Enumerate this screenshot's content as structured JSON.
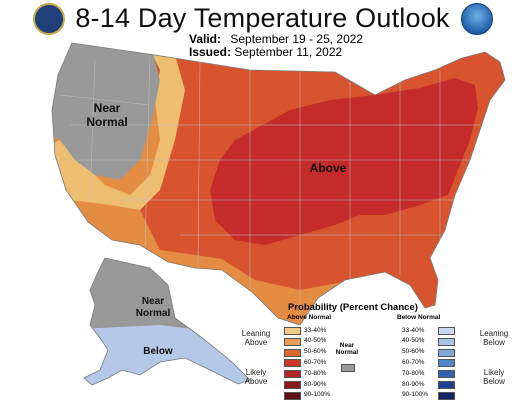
{
  "header": {
    "title": "8-14 Day Temperature Outlook",
    "valid_label": "Valid:",
    "valid_value": "September 19 - 25, 2022",
    "issued_label": "Issued:",
    "issued_value": "September 11, 2022"
  },
  "logos": {
    "left": "commerce-seal",
    "right": "noaa"
  },
  "map": {
    "region_labels": {
      "near_normal_west": "Near\nNormal",
      "above": "Above",
      "near_normal_alaska": "Near\nNormal",
      "below_alaska": "Below"
    },
    "colors": {
      "near_normal": "#999999",
      "above_33_40": "#edbd70",
      "above_40_50": "#e58c43",
      "above_50_60": "#d8542e",
      "above_60_70": "#c42b2b",
      "below_33_40": "#b5c8e8",
      "boundary": "#bfbfbf"
    }
  },
  "legend": {
    "title": "Probability (Percent Chance)",
    "above_header": "Above Normal",
    "below_header": "Below Normal",
    "near_normal_label": "Near\nNormal",
    "near_normal_color": "#999999",
    "categories": {
      "leaning_above": "Leaning\nAbove",
      "likely_above": "Likely\nAbove",
      "leaning_below": "Leaning\nBelow",
      "likely_below": "Likely\nBelow"
    },
    "above": [
      {
        "range": "33-40%",
        "color": "#f5cb85"
      },
      {
        "range": "40-50%",
        "color": "#e89c55"
      },
      {
        "range": "50-60%",
        "color": "#dd6630"
      },
      {
        "range": "60-70%",
        "color": "#c93a2d"
      },
      {
        "range": "70-80%",
        "color": "#b12525"
      },
      {
        "range": "80-90%",
        "color": "#8b1a1a"
      },
      {
        "range": "90-100%",
        "color": "#5e0f0f"
      }
    ],
    "below": [
      {
        "range": "33-40%",
        "color": "#c8d8f0"
      },
      {
        "range": "40-50%",
        "color": "#a7c2e6"
      },
      {
        "range": "50-60%",
        "color": "#7fa8db"
      },
      {
        "range": "60-70%",
        "color": "#4f86c9"
      },
      {
        "range": "70-80%",
        "color": "#2e63b0"
      },
      {
        "range": "80-90%",
        "color": "#1f3f8f"
      },
      {
        "range": "90-100%",
        "color": "#142566"
      }
    ]
  }
}
